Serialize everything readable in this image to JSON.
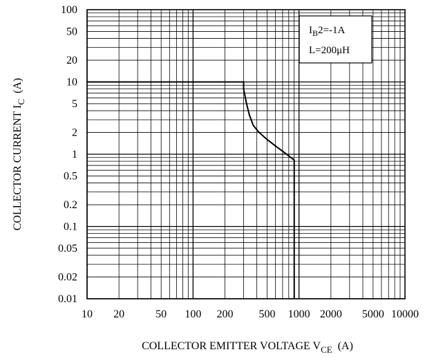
{
  "chart_data": {
    "type": "line",
    "xscale": "log",
    "yscale": "log",
    "xlim": [
      10,
      10000
    ],
    "ylim": [
      0.01,
      100
    ],
    "grid": true,
    "xlabel": {
      "main": "COLLECTOR EMITTER VOLTAGE V",
      "sub": "CE",
      "unit": "(A)"
    },
    "ylabel": {
      "main": "COLLECTOR CURRENT I",
      "sub": "C",
      "unit": "(A)"
    },
    "xticks": [
      {
        "v": 10,
        "label": "10"
      },
      {
        "v": 20,
        "label": "20"
      },
      {
        "v": 50,
        "label": "50"
      },
      {
        "v": 100,
        "label": "100"
      },
      {
        "v": 200,
        "label": "200"
      },
      {
        "v": 500,
        "label": "500"
      },
      {
        "v": 1000,
        "label": "1000"
      },
      {
        "v": 2000,
        "label": "2000"
      },
      {
        "v": 5000,
        "label": "5000"
      },
      {
        "v": 10000,
        "label": "10000"
      }
    ],
    "yticks": [
      {
        "v": 100,
        "label": "100"
      },
      {
        "v": 50,
        "label": "50"
      },
      {
        "v": 20,
        "label": "20"
      },
      {
        "v": 10,
        "label": "10"
      },
      {
        "v": 5,
        "label": "5"
      },
      {
        "v": 2,
        "label": "2"
      },
      {
        "v": 1,
        "label": "1"
      },
      {
        "v": 0.5,
        "label": "0.5"
      },
      {
        "v": 0.2,
        "label": "0.2"
      },
      {
        "v": 0.1,
        "label": "0.1"
      },
      {
        "v": 0.05,
        "label": "0.05"
      },
      {
        "v": 0.02,
        "label": "0.02"
      },
      {
        "v": 0.01,
        "label": "0.01"
      }
    ],
    "annotation": {
      "line1_main": "I",
      "line1_sub": "B",
      "line1_rest": "2=-1A",
      "line2": "L=200μH",
      "placement": "top-right"
    },
    "series": [
      {
        "color": "#000000",
        "points": [
          [
            10,
            10
          ],
          [
            300,
            10
          ],
          [
            300,
            8
          ],
          [
            320,
            5
          ],
          [
            340,
            3.5
          ],
          [
            370,
            2.5
          ],
          [
            420,
            2
          ],
          [
            500,
            1.6
          ],
          [
            600,
            1.3
          ],
          [
            700,
            1.1
          ],
          [
            800,
            0.95
          ],
          [
            900,
            0.83
          ],
          [
            900,
            0.01
          ]
        ]
      }
    ],
    "colors": {
      "grid": "#000000",
      "line": "#000000",
      "background": "#ffffff"
    }
  }
}
